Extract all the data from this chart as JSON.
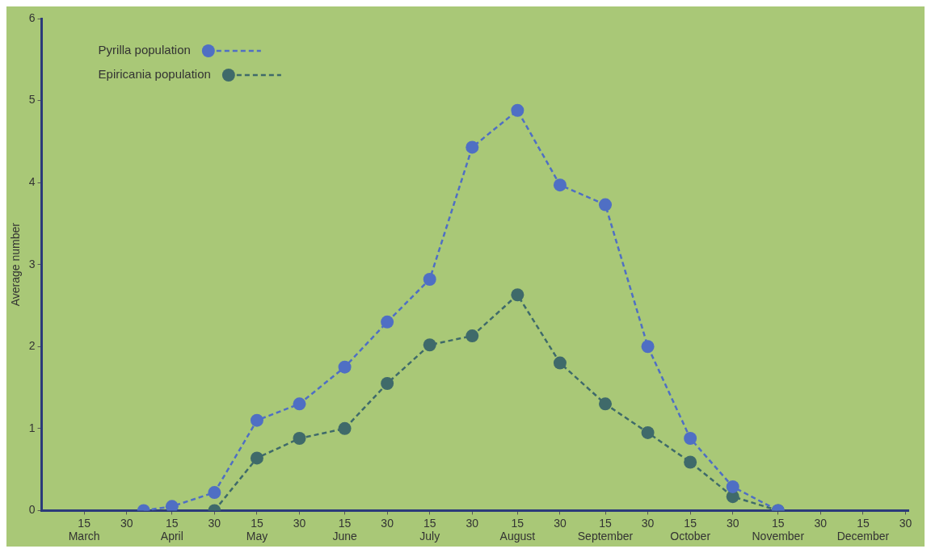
{
  "chart_data": {
    "type": "line",
    "ylabel": "Average number",
    "xlim": [
      "--02-28",
      "--12-31"
    ],
    "xticks": [
      {
        "value": "--03-15",
        "label": "15\nMarch"
      },
      {
        "value": "--03-30",
        "label": "30"
      },
      {
        "value": "--04-15",
        "label": "15\nApril"
      },
      {
        "value": "--04-30",
        "label": "30"
      },
      {
        "value": "--05-15",
        "label": "15\nMay"
      },
      {
        "value": "--05-30",
        "label": "30"
      },
      {
        "value": "--06-15",
        "label": "15\nJune"
      },
      {
        "value": "--06-30",
        "label": "30"
      },
      {
        "value": "--07-15",
        "label": "15\nJuly"
      },
      {
        "value": "--07-30",
        "label": "30"
      },
      {
        "value": "--08-15",
        "label": "15\nAugust"
      },
      {
        "value": "--08-30",
        "label": "30"
      },
      {
        "value": "--09-15",
        "label": "15\nSeptember"
      },
      {
        "value": "--09-30",
        "label": "30"
      },
      {
        "value": "--10-15",
        "label": "15\nOctober"
      },
      {
        "value": "--10-30",
        "label": "30"
      },
      {
        "value": "--11-15",
        "label": "15\nNovember"
      },
      {
        "value": "--11-30",
        "label": "30"
      },
      {
        "value": "--12-15",
        "label": "15\nDecember"
      },
      {
        "value": "--12-30",
        "label": "30"
      }
    ],
    "ylim": [
      0,
      6
    ],
    "yticks": [
      0,
      1,
      2,
      3,
      4,
      5,
      6
    ],
    "grid": false,
    "legend": "top left",
    "marker": "circle",
    "series": [
      {
        "name": "Pyrilla population",
        "color": "#4f6fc4",
        "line_style": "dashed",
        "x": [
          "--04-05",
          "--04-15",
          "--04-30",
          "--05-15",
          "--05-30",
          "--06-15",
          "--06-30",
          "--07-15",
          "--07-30",
          "--08-15",
          "--08-30",
          "--09-15",
          "--09-30",
          "--10-15",
          "--10-30",
          "--11-15"
        ],
        "values": [
          0,
          0.05,
          0.22,
          1.1,
          1.3,
          1.75,
          2.3,
          2.82,
          4.43,
          4.88,
          3.97,
          3.73,
          2.0,
          0.88,
          0.29,
          0
        ]
      },
      {
        "name": "Epiricania population",
        "color": "#3f6a6a",
        "line_style": "dashed",
        "x": [
          "--04-30",
          "--05-15",
          "--05-30",
          "--06-15",
          "--06-30",
          "--07-15",
          "--07-30",
          "--08-15",
          "--08-30",
          "--09-15",
          "--09-30",
          "--10-15",
          "--10-30",
          "--11-15"
        ],
        "values": [
          0,
          0.64,
          0.88,
          1.0,
          1.55,
          2.02,
          2.13,
          2.63,
          1.8,
          1.3,
          0.95,
          0.59,
          0.17,
          0
        ]
      }
    ]
  }
}
